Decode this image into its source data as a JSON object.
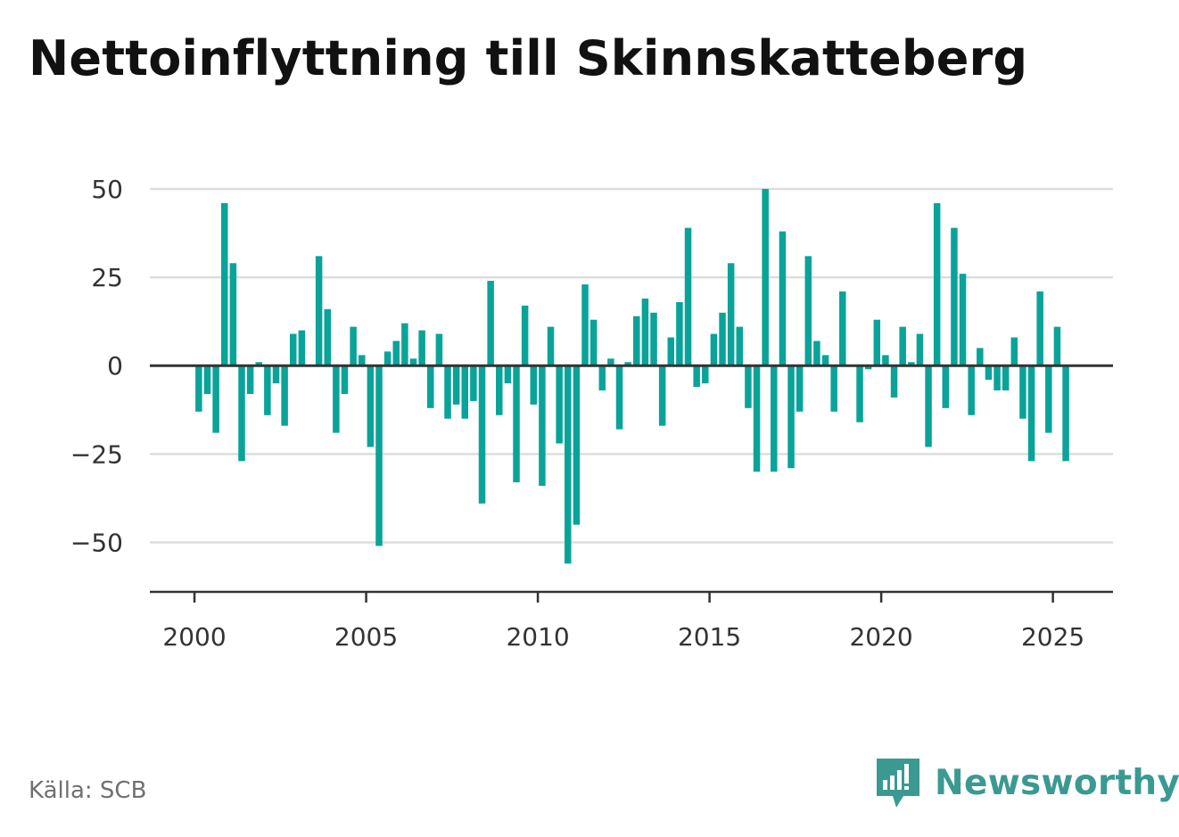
{
  "title": "Nettoinflyttning till Skinnskatteberg",
  "source": "Källa: SCB",
  "brand": {
    "name": "Newsworthy",
    "logo_icon": "newsworthy-bar-chart-icon"
  },
  "colors": {
    "bar": "#0aa39a",
    "grid": "#dddddd",
    "axis": "#333333",
    "brand": "#3a9a92"
  },
  "chart_data": {
    "type": "bar",
    "title": "Nettoinflyttning till Skinnskatteberg",
    "xlabel": "",
    "ylabel": "",
    "ylim": [
      -64,
      50
    ],
    "xlim": [
      1998.7,
      2026.75
    ],
    "grid": true,
    "y_ticks": [
      50,
      25,
      0,
      -25,
      -50
    ],
    "y_tick_labels": [
      "50",
      "25",
      "0",
      "−25",
      "−50"
    ],
    "x_ticks": [
      2000,
      2005,
      2010,
      2015,
      2020,
      2025
    ],
    "x_tick_labels": [
      "2000",
      "2005",
      "2010",
      "2015",
      "2020",
      "2025"
    ],
    "x": [
      2000.125,
      2000.375,
      2000.625,
      2000.875,
      2001.125,
      2001.375,
      2001.625,
      2001.875,
      2002.125,
      2002.375,
      2002.625,
      2002.875,
      2003.125,
      2003.375,
      2003.625,
      2003.875,
      2004.125,
      2004.375,
      2004.625,
      2004.875,
      2005.125,
      2005.375,
      2005.625,
      2005.875,
      2006.125,
      2006.375,
      2006.625,
      2006.875,
      2007.125,
      2007.375,
      2007.625,
      2007.875,
      2008.125,
      2008.375,
      2008.625,
      2008.875,
      2009.125,
      2009.375,
      2009.625,
      2009.875,
      2010.125,
      2010.375,
      2010.625,
      2010.875,
      2011.125,
      2011.375,
      2011.625,
      2011.875,
      2012.125,
      2012.375,
      2012.625,
      2012.875,
      2013.125,
      2013.375,
      2013.625,
      2013.875,
      2014.125,
      2014.375,
      2014.625,
      2014.875,
      2015.125,
      2015.375,
      2015.625,
      2015.875,
      2016.125,
      2016.375,
      2016.625,
      2016.875,
      2017.125,
      2017.375,
      2017.625,
      2017.875,
      2018.125,
      2018.375,
      2018.625,
      2018.875,
      2019.125,
      2019.375,
      2019.625,
      2019.875,
      2020.125,
      2020.375,
      2020.625,
      2020.875,
      2021.125,
      2021.375,
      2021.625,
      2021.875,
      2022.125,
      2022.375,
      2022.625,
      2022.875,
      2023.125,
      2023.375,
      2023.625,
      2023.875,
      2024.125,
      2024.375,
      2024.625,
      2024.875,
      2025.125,
      2025.375
    ],
    "values": [
      -13,
      -8,
      -19,
      46,
      29,
      -27,
      -8,
      1,
      -14,
      -5,
      -17,
      9,
      10,
      0,
      31,
      16,
      -19,
      -8,
      11,
      3,
      -23,
      -51,
      4,
      7,
      12,
      2,
      10,
      -12,
      9,
      -15,
      -11,
      -15,
      -10,
      -39,
      24,
      -14,
      -5,
      -33,
      17,
      -11,
      -34,
      11,
      -22,
      -56,
      -45,
      23,
      13,
      -7,
      2,
      -18,
      1,
      14,
      19,
      15,
      -17,
      8,
      18,
      39,
      -6,
      -5,
      9,
      15,
      29,
      11,
      -12,
      -30,
      50,
      -30,
      38,
      -29,
      -13,
      31,
      7,
      3,
      -13,
      21,
      0,
      -16,
      -1,
      13,
      3,
      -9,
      11,
      1,
      9,
      -23,
      46,
      -12,
      39,
      26,
      -14,
      5,
      -4,
      -7,
      -7,
      8,
      -15,
      -27,
      21,
      -19,
      11,
      -27
    ]
  }
}
